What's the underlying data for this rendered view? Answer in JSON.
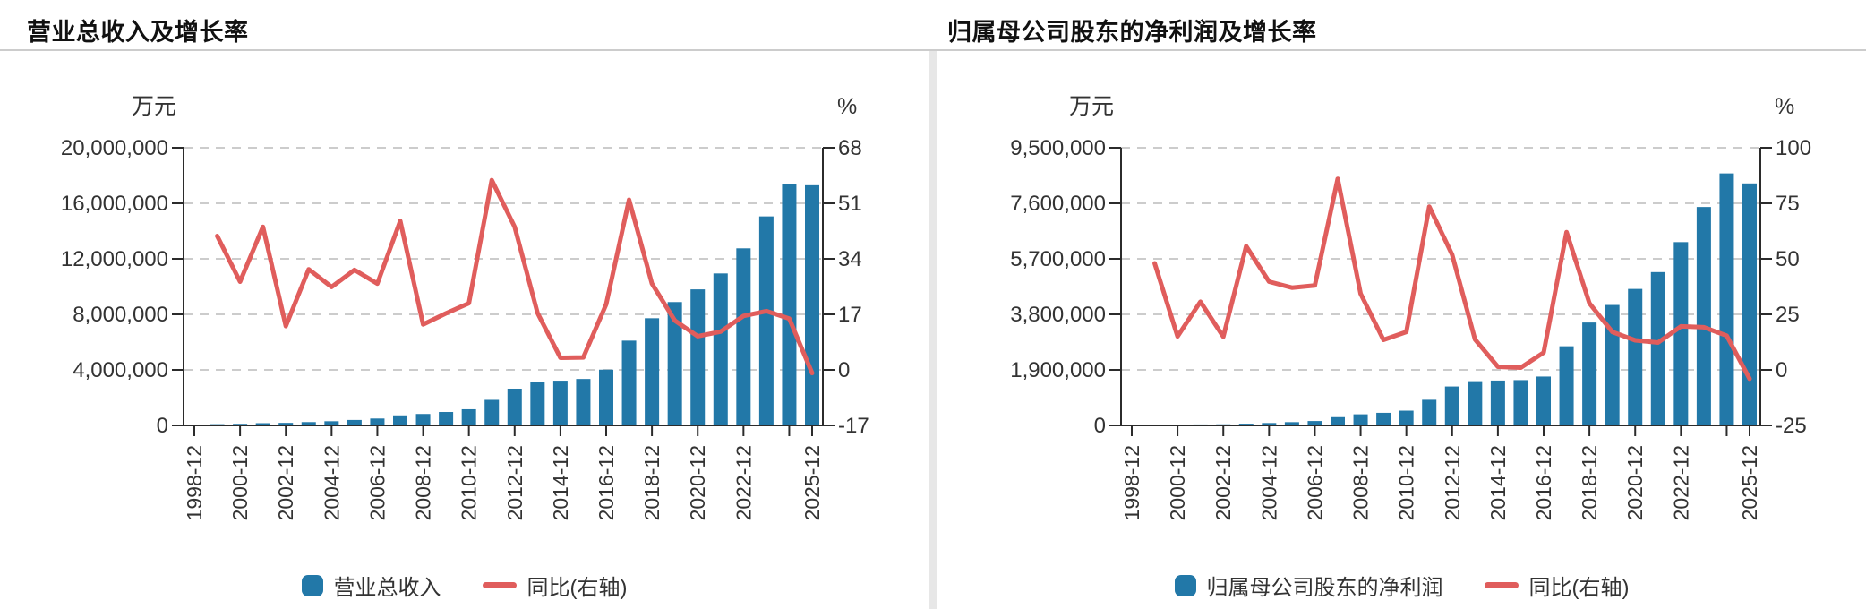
{
  "page": {
    "background": "#ffffff",
    "divider_color": "#e7e7e7",
    "title_rule_color": "#cccccc"
  },
  "colors": {
    "bar": "#2278a8",
    "line": "#e05d5c",
    "axis": "#2b2b2b",
    "grid": "#cccccc",
    "text": "#333333",
    "title": "#111111"
  },
  "chart_data": [
    {
      "type": "bar",
      "title": "营业总收入及增长率",
      "legend": {
        "bar_label": "营业总收入",
        "line_label": "同比(右轴)"
      },
      "left_axis": {
        "unit": "万元",
        "min": 0,
        "max": 20000000,
        "tick_labels": [
          "20,000,000",
          "16,000,000",
          "12,000,000",
          "8,000,000",
          "4,000,000",
          "0"
        ]
      },
      "right_axis": {
        "unit": "%",
        "min": -17,
        "max": 68,
        "tick_labels": [
          "68",
          "51",
          "34",
          "17",
          "0",
          "-17"
        ]
      },
      "categories": [
        "1998-12",
        "1999-12",
        "2000-12",
        "2001-12",
        "2002-12",
        "2003-12",
        "2004-12",
        "2005-12",
        "2006-12",
        "2007-12",
        "2008-12",
        "2009-12",
        "2010-12",
        "2011-12",
        "2012-12",
        "2013-12",
        "2014-12",
        "2015-12",
        "2016-12",
        "2017-12",
        "2018-12",
        "2019-12",
        "2020-12",
        "2021-12",
        "2022-12",
        "2023-12",
        "2024-12",
        "2025-12"
      ],
      "x_label_indices": [
        0,
        2,
        4,
        6,
        8,
        10,
        12,
        14,
        16,
        18,
        20,
        22,
        24,
        27
      ],
      "x_tick_indices": [
        0,
        2,
        4,
        6,
        8,
        10,
        12,
        14,
        16,
        18,
        20,
        22,
        24,
        26,
        27
      ],
      "series": [
        {
          "name": "营业总收入",
          "kind": "bar",
          "axis": "left",
          "values": [
            63000,
            89000,
            113000,
            161800,
            183500,
            240100,
            301000,
            393100,
            497000,
            723700,
            824200,
            967000,
            1164000,
            1840000,
            2645500,
            3107100,
            3221700,
            3344700,
            4015500,
            6106300,
            7719900,
            8885400,
            9799300,
            10946400,
            12755400,
            15056000,
            17414400,
            17300000
          ]
        },
        {
          "name": "同比(右轴)",
          "kind": "line",
          "axis": "right",
          "values": [
            null,
            41,
            27,
            43.8,
            13.4,
            30.8,
            25.4,
            30.6,
            26.4,
            45.6,
            13.9,
            17.3,
            20.4,
            58.1,
            43.8,
            17.4,
            3.7,
            3.8,
            20.1,
            52.1,
            26.4,
            15.1,
            10.3,
            11.7,
            16.5,
            18.0,
            15.7,
            -1.0
          ]
        }
      ]
    },
    {
      "type": "bar",
      "title": "归属母公司股东的净利润及增长率",
      "legend": {
        "bar_label": "归属母公司股东的净利润",
        "line_label": "同比(右轴)"
      },
      "left_axis": {
        "unit": "万元",
        "min": 0,
        "max": 9500000,
        "tick_labels": [
          "9,500,000",
          "7,600,000",
          "5,700,000",
          "3,800,000",
          "1,900,000",
          "0"
        ]
      },
      "right_axis": {
        "unit": "%",
        "min": -25,
        "max": 100,
        "tick_labels": [
          "100",
          "75",
          "50",
          "25",
          "0",
          "-25"
        ]
      },
      "categories": [
        "1998-12",
        "1999-12",
        "2000-12",
        "2001-12",
        "2002-12",
        "2003-12",
        "2004-12",
        "2005-12",
        "2006-12",
        "2007-12",
        "2008-12",
        "2009-12",
        "2010-12",
        "2011-12",
        "2012-12",
        "2013-12",
        "2014-12",
        "2015-12",
        "2016-12",
        "2017-12",
        "2018-12",
        "2019-12",
        "2020-12",
        "2021-12",
        "2022-12",
        "2023-12",
        "2024-12",
        "2025-12"
      ],
      "x_label_indices": [
        0,
        2,
        4,
        6,
        8,
        10,
        12,
        14,
        16,
        18,
        20,
        22,
        24,
        27
      ],
      "x_tick_indices": [
        0,
        2,
        4,
        6,
        8,
        10,
        12,
        14,
        16,
        18,
        20,
        22,
        24,
        26,
        27
      ],
      "series": [
        {
          "name": "归属母公司股东的净利润",
          "kind": "bar",
          "axis": "left",
          "values": [
            14700,
            21800,
            25100,
            32800,
            37700,
            58700,
            82000,
            111900,
            150400,
            282800,
            379900,
            431200,
            505100,
            876300,
            1330800,
            1513700,
            1535000,
            1550300,
            1671800,
            2707900,
            3520400,
            4120600,
            4669700,
            5246000,
            6271600,
            7473400,
            8622800,
            8280000
          ]
        },
        {
          "name": "同比(右轴)",
          "kind": "line",
          "axis": "right",
          "values": [
            null,
            48,
            15.1,
            30.7,
            14.9,
            55.7,
            39.7,
            37,
            38,
            86,
            34.3,
            13.5,
            17.1,
            73.5,
            51.9,
            13.7,
            1.4,
            1.0,
            7.8,
            62.0,
            30.0,
            17.1,
            13.3,
            12.3,
            19.6,
            19.2,
            15.4,
            -4.0
          ]
        }
      ]
    }
  ]
}
